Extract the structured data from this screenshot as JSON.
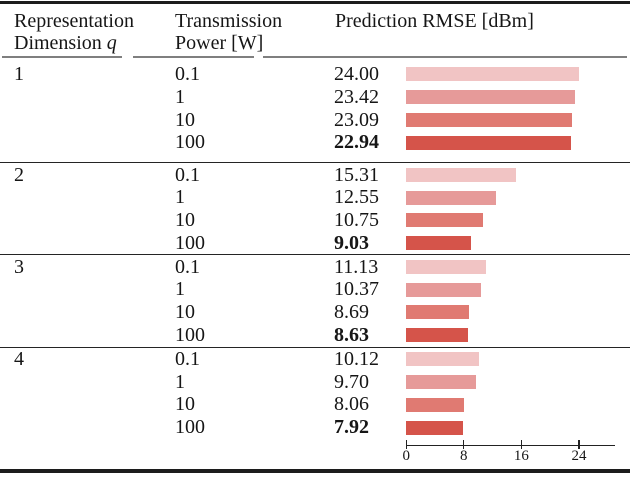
{
  "header": {
    "col1_line1": "Representation",
    "col1_line2_prefix": "Dimension ",
    "col1_var": "q",
    "col2_line1": "Transmission",
    "col2_line2": "Power [W]",
    "col3": "Prediction RMSE [dBm]"
  },
  "chart_data": {
    "type": "bar",
    "orientation": "horizontal",
    "title": "Prediction RMSE [dBm]",
    "xlabel": "Prediction RMSE [dBm]",
    "xlim": [
      0,
      29
    ],
    "axis_ticks": [
      "0",
      "8",
      "16",
      "24"
    ],
    "bar_colors": [
      "#f1c4c4",
      "#e69a99",
      "#e07a72",
      "#d5544a"
    ],
    "column_headers": [
      "Representation Dimension q",
      "Transmission Power [W]",
      "Prediction RMSE [dBm]"
    ],
    "groups": [
      {
        "dimension": "1",
        "rows": [
          {
            "power": "0.1",
            "rmse": "24.00",
            "value": 24.0,
            "bold": false
          },
          {
            "power": "1",
            "rmse": "23.42",
            "value": 23.42,
            "bold": false
          },
          {
            "power": "10",
            "rmse": "23.09",
            "value": 23.09,
            "bold": false
          },
          {
            "power": "100",
            "rmse": "22.94",
            "value": 22.94,
            "bold": true
          }
        ]
      },
      {
        "dimension": "2",
        "rows": [
          {
            "power": "0.1",
            "rmse": "15.31",
            "value": 15.31,
            "bold": false
          },
          {
            "power": "1",
            "rmse": "12.55",
            "value": 12.55,
            "bold": false
          },
          {
            "power": "10",
            "rmse": "10.75",
            "value": 10.75,
            "bold": false
          },
          {
            "power": "100",
            "rmse": "9.03",
            "value": 9.03,
            "bold": true
          }
        ]
      },
      {
        "dimension": "3",
        "rows": [
          {
            "power": "0.1",
            "rmse": "11.13",
            "value": 11.13,
            "bold": false
          },
          {
            "power": "1",
            "rmse": "10.37",
            "value": 10.37,
            "bold": false
          },
          {
            "power": "10",
            "rmse": "8.69",
            "value": 8.69,
            "bold": false
          },
          {
            "power": "100",
            "rmse": "8.63",
            "value": 8.63,
            "bold": true
          }
        ]
      },
      {
        "dimension": "4",
        "rows": [
          {
            "power": "0.1",
            "rmse": "10.12",
            "value": 10.12,
            "bold": false
          },
          {
            "power": "1",
            "rmse": "9.70",
            "value": 9.7,
            "bold": false
          },
          {
            "power": "10",
            "rmse": "8.06",
            "value": 8.06,
            "bold": false
          },
          {
            "power": "100",
            "rmse": "7.92",
            "value": 7.92,
            "bold": true
          }
        ]
      }
    ]
  }
}
